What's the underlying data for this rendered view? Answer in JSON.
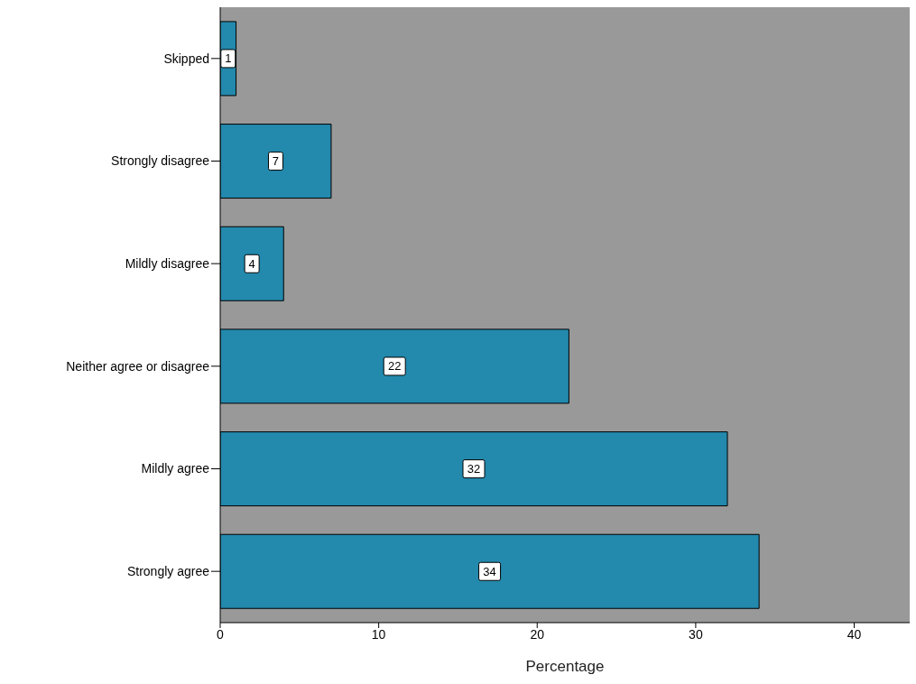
{
  "chart_data": {
    "type": "bar",
    "orientation": "horizontal",
    "xlabel": "Percentage",
    "categories": [
      "Skipped",
      "Strongly disagree",
      "Mildly disagree",
      "Neither agree or disagree",
      "Mildly agree",
      "Strongly agree"
    ],
    "values": [
      1,
      7,
      4,
      22,
      32,
      34
    ],
    "color": "#2389ad",
    "xlim": [
      0,
      43.5
    ],
    "xticks": [
      0,
      10,
      20,
      30,
      40
    ],
    "data_labels": true,
    "grid": false
  }
}
